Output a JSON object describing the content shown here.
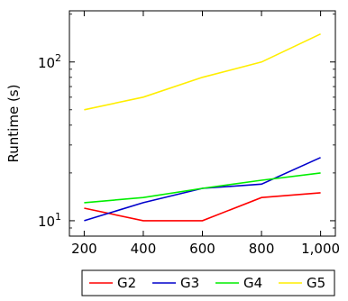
{
  "chart_data": {
    "type": "line",
    "xlabel": "",
    "ylabel": "Runtime (s)",
    "x_scale": "linear",
    "y_scale": "log",
    "xlim": [
      150,
      1050
    ],
    "ylim": [
      8,
      210
    ],
    "x": [
      200,
      400,
      600,
      800,
      1000
    ],
    "x_tick_labels": [
      "200",
      "400",
      "600",
      "800",
      "1,000"
    ],
    "y_ticks": [
      {
        "value": 10,
        "base": "10",
        "exp": "1"
      },
      {
        "value": 100,
        "base": "10",
        "exp": "2"
      }
    ],
    "grid": false,
    "legend_position": "bottom",
    "series": [
      {
        "name": "G2",
        "color": "#ff0000",
        "values": [
          12,
          10,
          10,
          14,
          15
        ]
      },
      {
        "name": "G3",
        "color": "#0000cc",
        "values": [
          10,
          13,
          16,
          17,
          25
        ]
      },
      {
        "name": "G4",
        "color": "#00ee00",
        "values": [
          13,
          14,
          16,
          18,
          20
        ]
      },
      {
        "name": "G5",
        "color": "#ffee00",
        "values": [
          50,
          60,
          80,
          100,
          150
        ]
      }
    ]
  }
}
